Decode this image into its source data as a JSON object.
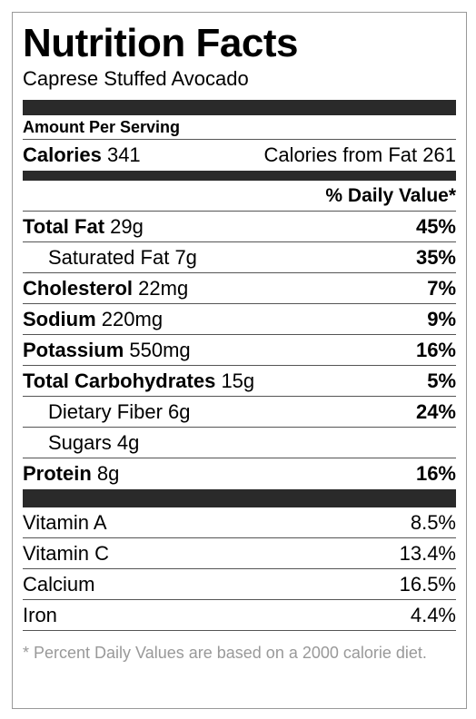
{
  "label": {
    "title": "Nutrition Facts",
    "recipe": "Caprese Stuffed Avocado",
    "amount_per_serving": "Amount Per Serving",
    "calories": {
      "label": "Calories",
      "value": "341",
      "from_fat_label": "Calories from Fat",
      "from_fat_value": "261"
    },
    "daily_value_header": "% Daily Value*",
    "nutrients": [
      {
        "name": "Total Fat",
        "amount": "29g",
        "dv": "45%"
      },
      {
        "name": "Saturated Fat",
        "amount": "7g",
        "dv": "35%"
      },
      {
        "name": "Cholesterol",
        "amount": "22mg",
        "dv": "7%"
      },
      {
        "name": "Sodium",
        "amount": "220mg",
        "dv": "9%"
      },
      {
        "name": "Potassium",
        "amount": "550mg",
        "dv": "16%"
      },
      {
        "name": "Total Carbohydrates",
        "amount": "15g",
        "dv": "5%"
      },
      {
        "name": "Dietary Fiber",
        "amount": "6g",
        "dv": "24%"
      },
      {
        "name": "Sugars",
        "amount": "4g",
        "dv": ""
      },
      {
        "name": "Protein",
        "amount": "8g",
        "dv": "16%"
      }
    ],
    "vitamins": [
      {
        "name": "Vitamin A",
        "dv": "8.5%"
      },
      {
        "name": "Vitamin C",
        "dv": "13.4%"
      },
      {
        "name": "Calcium",
        "dv": "16.5%"
      },
      {
        "name": "Iron",
        "dv": "4.4%"
      }
    ],
    "footnote": "* Percent Daily Values are based on a 2000 calorie diet."
  }
}
